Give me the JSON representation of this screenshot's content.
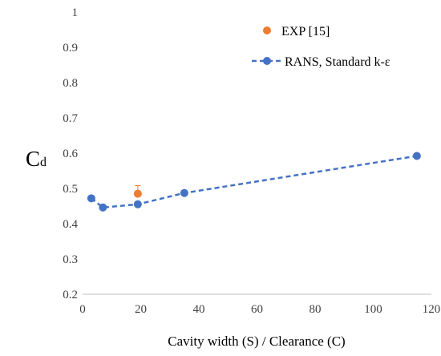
{
  "chart_data": {
    "type": "scatter",
    "xlabel": "Cavity width (S) /  Clearance (C)",
    "ylabel_main": "C",
    "ylabel_sub": "d",
    "xlim": [
      0,
      120
    ],
    "ylim": [
      0.2,
      1.0
    ],
    "xticks": [
      0,
      20,
      40,
      60,
      80,
      100,
      120
    ],
    "yticks": [
      0.2,
      0.3,
      0.4,
      0.5,
      0.6,
      0.7,
      0.8,
      0.9,
      1.0
    ],
    "ytick_labels": [
      "0.2",
      "0.3",
      "0.4",
      "0.5",
      "0.6",
      "0.7",
      "0.8",
      "0.9",
      "1"
    ],
    "grid": false,
    "legend_position": "top-right",
    "series": [
      {
        "name": "EXP [15]",
        "style": "marker",
        "color": "#ED7D31",
        "x": [
          19
        ],
        "y": [
          0.485
        ],
        "error_plus": [
          0.023
        ],
        "error_minus": [
          0
        ]
      },
      {
        "name": "RANS, Standard k-ε",
        "style": "dashed-line-marker",
        "color": "#4472C4",
        "x": [
          3,
          7,
          19,
          35,
          115
        ],
        "y": [
          0.472,
          0.446,
          0.455,
          0.487,
          0.592
        ]
      }
    ]
  }
}
